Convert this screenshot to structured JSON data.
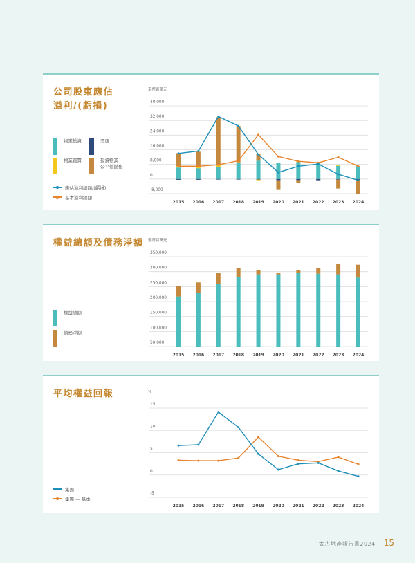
{
  "colors": {
    "teal": "#4bbdbd",
    "navy": "#2e4a7a",
    "yellow": "#f2c81c",
    "brown": "#c4893f",
    "blue_line": "#1d8fb8",
    "orange_line": "#e8832a",
    "grid": "#dcdcdc",
    "title": "#c4872f"
  },
  "panel1": {
    "title": "公司股東應佔\n溢利/(虧損)",
    "unit": "港幣百萬元",
    "legend": {
      "investment_property": "物業投資",
      "hotel": "酒店",
      "property_trading": "物業買賣",
      "fair_value": "投資物業\n公平值變化",
      "reported": "應佔溢利總額/(虧損)",
      "underlying": "基本溢利總額"
    }
  },
  "panel2": {
    "title": "權益總額及債務淨額",
    "unit": "港幣百萬元",
    "legend": {
      "equity": "權益總額",
      "net_debt": "債務淨額"
    }
  },
  "panel3": {
    "title": "平均權益回報",
    "unit": "%",
    "legend": {
      "group": "集團",
      "group_underlying": "集團 — 基本"
    }
  },
  "footer": {
    "text": "太古地產報告書2024",
    "page": "15"
  },
  "chart_data": [
    {
      "type": "bar",
      "subtype": "stacked bar + line",
      "title": "公司股東應佔溢利/(虧損)",
      "ylabel": "港幣百萬元",
      "categories": [
        "2015",
        "2016",
        "2017",
        "2018",
        "2019",
        "2020",
        "2021",
        "2022",
        "2023",
        "2024"
      ],
      "yticks": [
        -8000,
        0,
        8000,
        16000,
        24000,
        32000,
        40000
      ],
      "ylim": [
        -8000,
        40000
      ],
      "series": [
        {
          "name": "物業投資",
          "kind": "bar",
          "values": [
            6300,
            5900,
            6700,
            8900,
            10000,
            8900,
            9300,
            8600,
            7200,
            7000
          ]
        },
        {
          "name": "酒店",
          "kind": "bar",
          "values": [
            -400,
            -400,
            -300,
            -300,
            -300,
            -700,
            -600,
            -700,
            -300,
            -400
          ]
        },
        {
          "name": "物業買賣",
          "kind": "bar",
          "values": [
            700,
            700,
            700,
            200,
            -400,
            0,
            400,
            0,
            300,
            0
          ]
        },
        {
          "name": "投資物業公平值變化",
          "kind": "bar",
          "values": [
            7100,
            8300,
            26400,
            19900,
            3800,
            -4900,
            -1600,
            0,
            -4900,
            -7800
          ]
        },
        {
          "name": "應佔溢利總額/(虧損)",
          "kind": "line",
          "values": [
            14000,
            15300,
            34200,
            29000,
            13400,
            3600,
            7000,
            8200,
            2600,
            -700
          ]
        },
        {
          "name": "基本溢利總額",
          "kind": "line",
          "values": [
            7000,
            7000,
            7800,
            10000,
            24200,
            12300,
            9700,
            8900,
            11900,
            7000
          ]
        }
      ],
      "grid": true,
      "legend_position": "left"
    },
    {
      "type": "bar",
      "subtype": "stacked bar",
      "title": "權益總額及債務淨額",
      "ylabel": "港幣百萬元",
      "categories": [
        "2015",
        "2016",
        "2017",
        "2018",
        "2019",
        "2020",
        "2021",
        "2022",
        "2023",
        "2024"
      ],
      "yticks": [
        50000,
        100000,
        150000,
        200000,
        250000,
        300000,
        350000
      ],
      "ylim": [
        50000,
        350000
      ],
      "series": [
        {
          "name": "權益總額",
          "values": [
            217000,
            229000,
            260000,
            283000,
            291000,
            291000,
            295000,
            293000,
            291000,
            280000
          ]
        },
        {
          "name": "債務淨額",
          "values": [
            35000,
            35000,
            35000,
            28000,
            13000,
            6000,
            9000,
            18000,
            36000,
            43000
          ]
        }
      ],
      "grid": true,
      "legend_position": "left"
    },
    {
      "type": "line",
      "title": "平均權益回報",
      "ylabel": "%",
      "categories": [
        "2015",
        "2016",
        "2017",
        "2018",
        "2019",
        "2020",
        "2021",
        "2022",
        "2023",
        "2024"
      ],
      "yticks": [
        -5,
        0,
        5,
        10,
        15
      ],
      "ylim": [
        -5,
        15
      ],
      "series": [
        {
          "name": "集團",
          "values": [
            6.6,
            6.8,
            14.1,
            10.7,
            4.7,
            1.2,
            2.5,
            2.7,
            0.9,
            -0.3
          ]
        },
        {
          "name": "集團 — 基本",
          "values": [
            3.3,
            3.2,
            3.2,
            3.8,
            8.5,
            4.2,
            3.3,
            3.0,
            4.0,
            2.4
          ]
        }
      ],
      "grid": true,
      "legend_position": "left"
    }
  ]
}
